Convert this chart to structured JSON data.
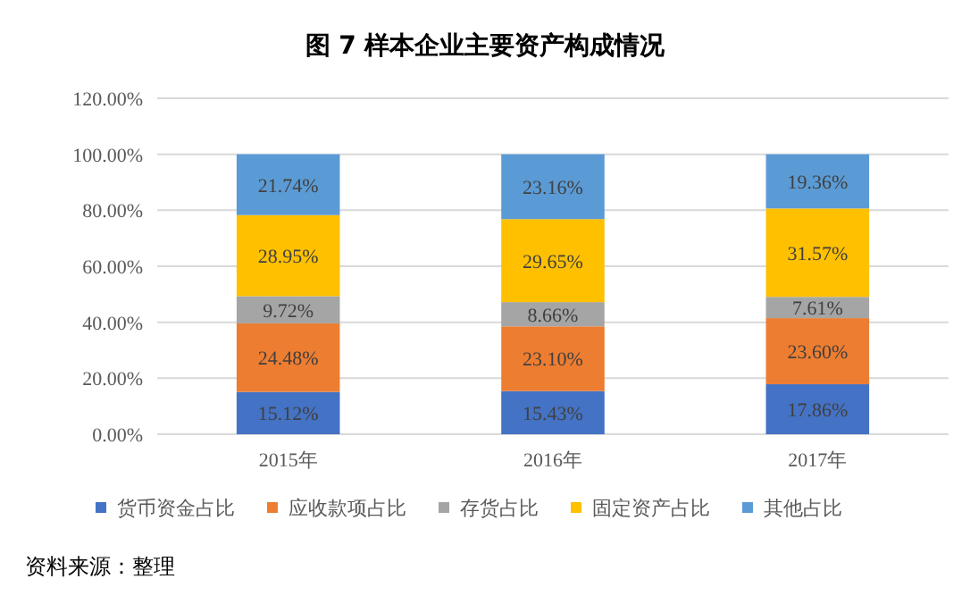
{
  "chart_data": {
    "type": "bar",
    "stacked": true,
    "title": "图 7  样本企业主要资产构成情况",
    "categories": [
      "2015年",
      "2016年",
      "2017年"
    ],
    "series": [
      {
        "name": "货币资金占比",
        "color": "#4472c4",
        "values": [
          15.12,
          15.43,
          17.86
        ],
        "value_labels": [
          "15.12%",
          "15.43%",
          "17.86%"
        ]
      },
      {
        "name": "应收款项占比",
        "color": "#ed7d31",
        "values": [
          24.48,
          23.1,
          23.6
        ],
        "value_labels": [
          "24.48%",
          "23.10%",
          "23.60%"
        ]
      },
      {
        "name": "存货占比",
        "color": "#a5a5a5",
        "values": [
          9.72,
          8.66,
          7.61
        ],
        "value_labels": [
          "9.72%",
          "8.66%",
          "7.61%"
        ]
      },
      {
        "name": "固定资产占比",
        "color": "#ffc000",
        "values": [
          28.95,
          29.65,
          31.57
        ],
        "value_labels": [
          "28.95%",
          "29.65%",
          "31.57%"
        ]
      },
      {
        "name": "其他占比",
        "color": "#5b9bd5",
        "values": [
          21.74,
          23.16,
          19.36
        ],
        "value_labels": [
          "21.74%",
          "23.16%",
          "19.36%"
        ]
      }
    ],
    "ylim": [
      0,
      120
    ],
    "yticks": [
      {
        "value": 0,
        "label": "0.00%"
      },
      {
        "value": 20,
        "label": "20.00%"
      },
      {
        "value": 40,
        "label": "40.00%"
      },
      {
        "value": 60,
        "label": "60.00%"
      },
      {
        "value": 80,
        "label": "80.00%"
      },
      {
        "value": 100,
        "label": "100.00%"
      },
      {
        "value": 120,
        "label": "120.00%"
      }
    ],
    "grid": "y",
    "legend": "bottom",
    "annotations": [
      "资料来源：整理"
    ]
  }
}
